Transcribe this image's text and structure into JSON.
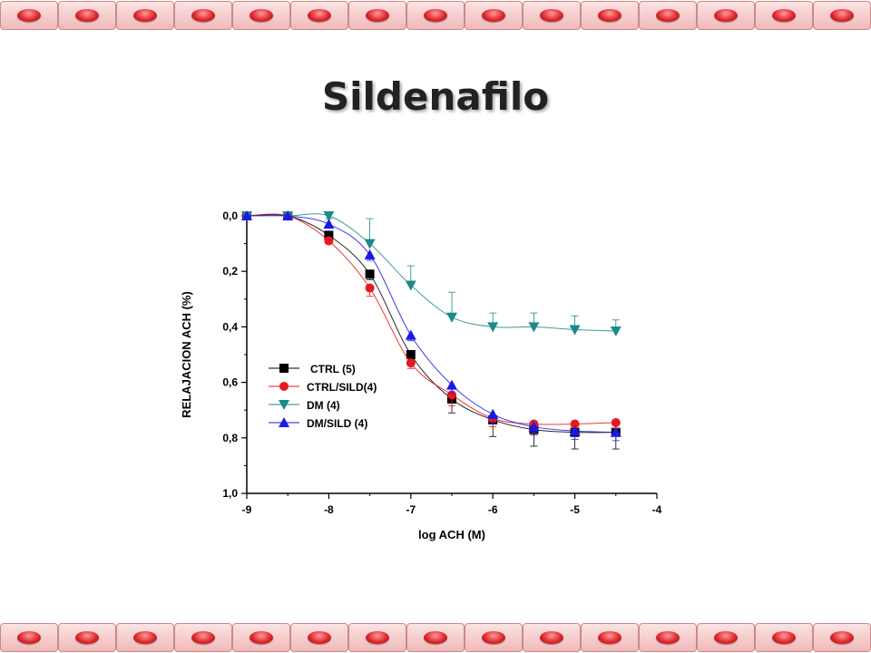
{
  "slide": {
    "title": "Sildenafilo",
    "border_cells": 15,
    "border_color": "#e0292e"
  },
  "chart_data": {
    "type": "line",
    "title": "",
    "xlabel": "log ACH (M)",
    "ylabel": "RELAJACION ACH (%)",
    "xlim": [
      -9,
      -4
    ],
    "ylim": [
      1.0,
      0.0
    ],
    "x_ticks": [
      "-9",
      "-8",
      "-7",
      "-6",
      "-5",
      "-4"
    ],
    "y_ticks": [
      "0,0",
      "0,2",
      "0,4",
      "0,6",
      "0,8",
      "1,0"
    ],
    "y_inverted": true,
    "grid": false,
    "legend_position": "lower-left",
    "x": [
      -9,
      -8.5,
      -8,
      -7.5,
      -7,
      -6.5,
      -6,
      -5.5,
      -5,
      -4.5
    ],
    "series": [
      {
        "name": "CTRL (5)",
        "color": "#000000",
        "marker": "square",
        "values": [
          0.0,
          0.0,
          0.07,
          0.21,
          0.5,
          0.66,
          0.735,
          0.77,
          0.78,
          0.78
        ],
        "errors": [
          0,
          0,
          0.01,
          0.02,
          0.03,
          0.05,
          0.06,
          0.06,
          0.06,
          0.06
        ]
      },
      {
        "name": "CTRL/SILD(4)",
        "color": "#e8191c",
        "marker": "circle",
        "values": [
          0.0,
          0.0,
          0.09,
          0.26,
          0.53,
          0.645,
          0.73,
          0.75,
          0.75,
          0.745
        ],
        "errors": [
          0,
          0,
          0.01,
          0.03,
          0.02,
          0.04,
          0.03,
          0.03,
          0.02,
          0.02
        ]
      },
      {
        "name": "DM (4)",
        "color": "#1b8a88",
        "marker": "triangle-down",
        "values": [
          0.0,
          0.0,
          0.0,
          0.1,
          0.25,
          0.365,
          0.4,
          0.4,
          0.41,
          0.415
        ],
        "errors": [
          0,
          0,
          0.01,
          0.09,
          0.07,
          0.09,
          0.05,
          0.05,
          0.05,
          0.04
        ]
      },
      {
        "name": "DM/SILD (4)",
        "color": "#1a1ae6",
        "marker": "triangle-up",
        "values": [
          0.0,
          0.0,
          0.03,
          0.14,
          0.43,
          0.61,
          0.715,
          0.76,
          0.775,
          0.78
        ],
        "errors": [
          0,
          0,
          0.01,
          0.02,
          0.02,
          0.03,
          0.03,
          0.03,
          0.03,
          0.03
        ]
      }
    ]
  }
}
